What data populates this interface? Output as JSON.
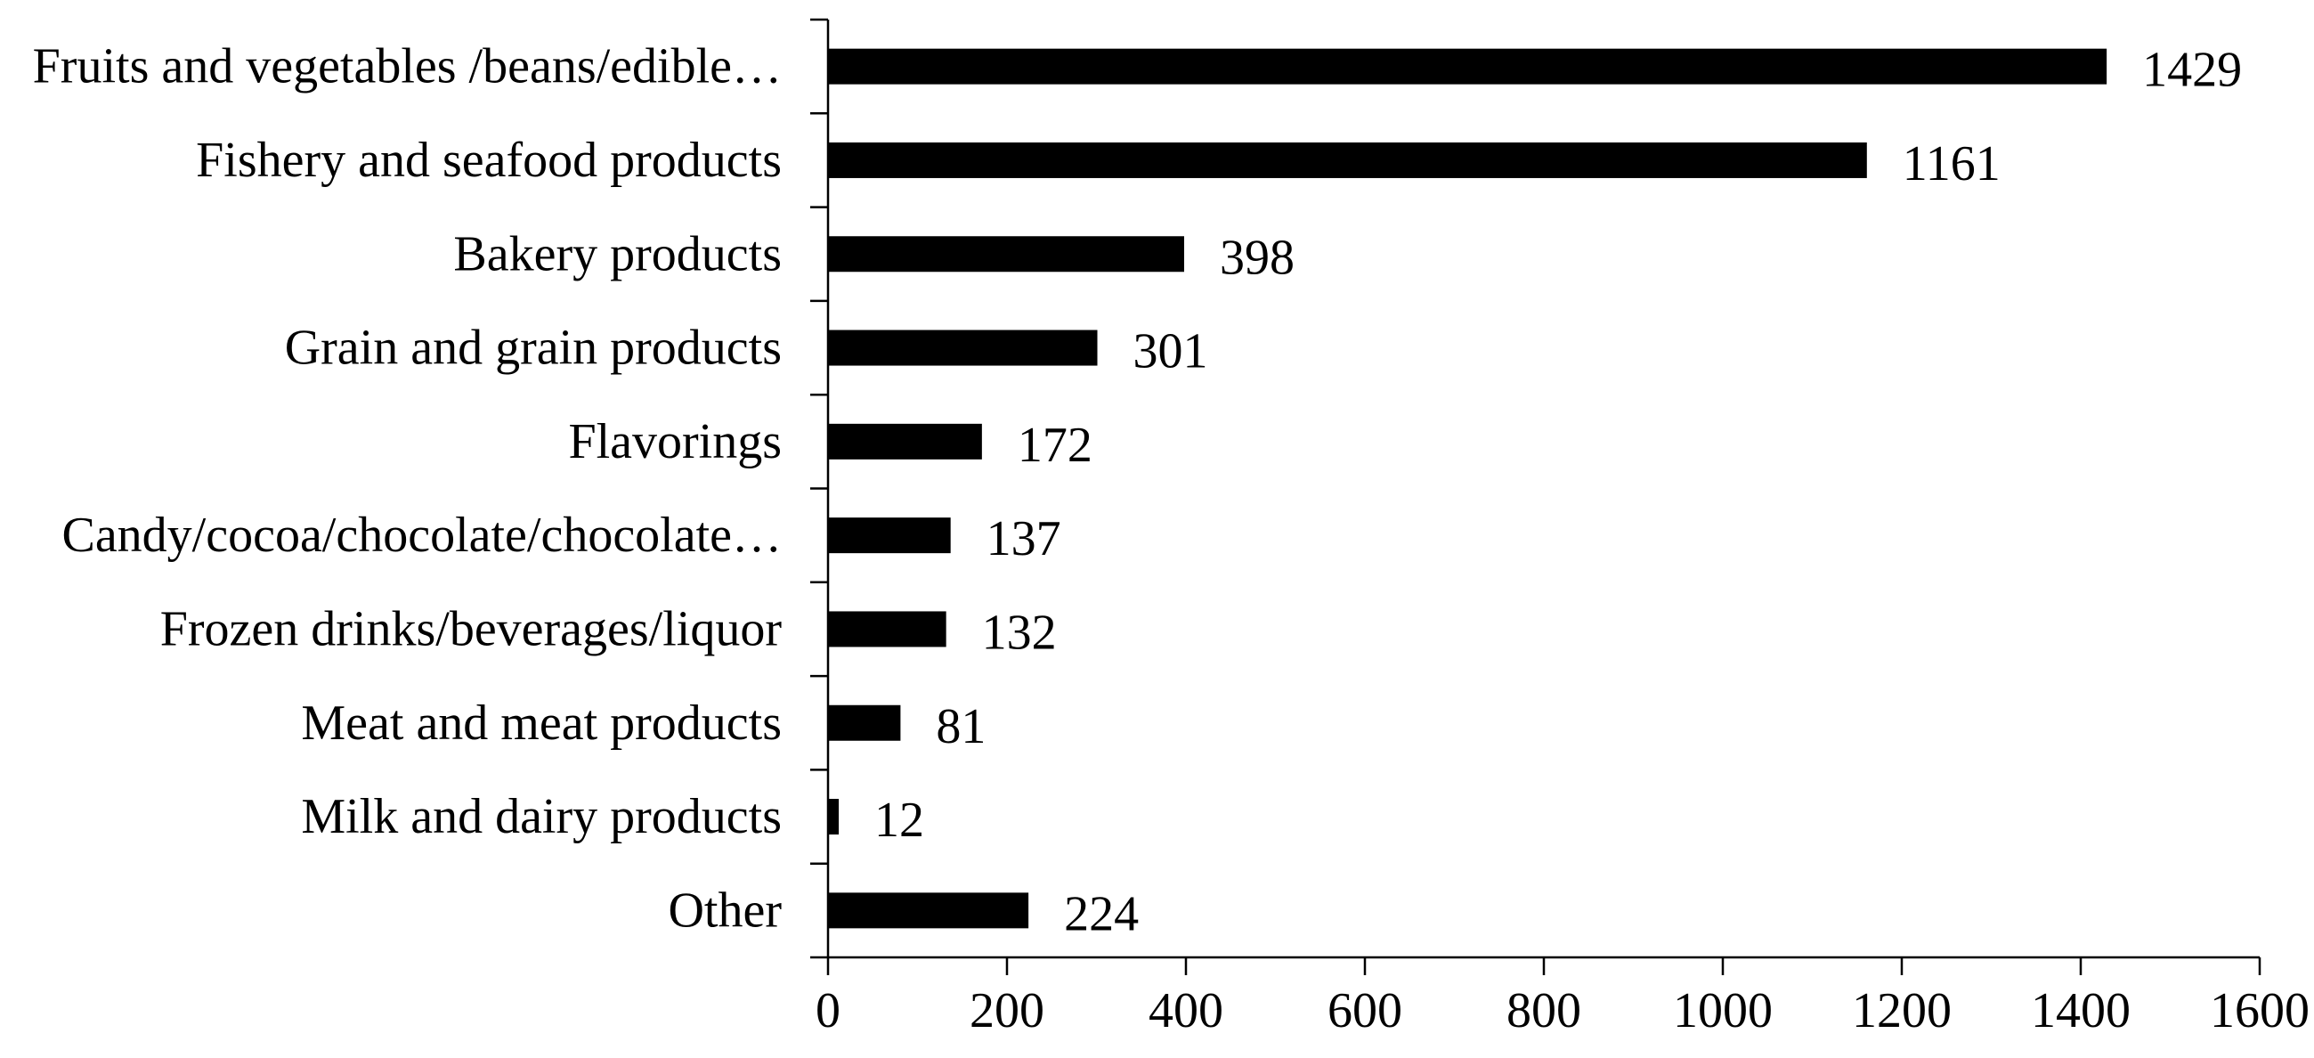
{
  "chart_data": {
    "type": "bar",
    "orientation": "horizontal",
    "categories": [
      "Fruits and vegetables /beans/edible…",
      "Fishery and seafood products",
      "Bakery products",
      "Grain and grain products",
      "Flavorings",
      "Candy/cocoa/chocolate/chocolate…",
      "Frozen drinks/beverages/liquor",
      "Meat and meat products",
      "Milk and dairy products",
      "Other"
    ],
    "values": [
      1429,
      1161,
      398,
      301,
      172,
      137,
      132,
      81,
      12,
      224
    ],
    "data_labels": [
      "1429",
      "1161",
      "398",
      "301",
      "172",
      "137",
      "132",
      "81",
      "12",
      "224"
    ],
    "xlim": [
      0,
      1600
    ],
    "xticks": [
      0,
      200,
      400,
      600,
      800,
      1000,
      1200,
      1400,
      1600
    ],
    "xtick_labels": [
      "0",
      "200",
      "400",
      "600",
      "800",
      "1000",
      "1200",
      "1400",
      "1600"
    ],
    "bar_color": "#000000",
    "grid": false,
    "legend": "none"
  }
}
